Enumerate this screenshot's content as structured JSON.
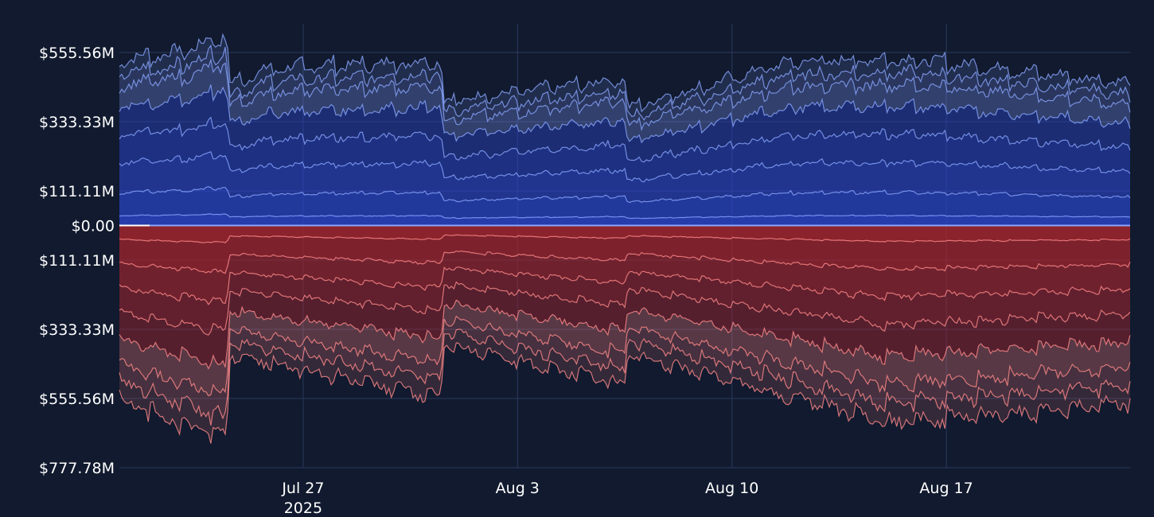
{
  "chart_data": {
    "type": "area",
    "title": "",
    "xlabel": "",
    "ylabel": "",
    "x_range": [
      "2025-07-21",
      "2025-08-23"
    ],
    "x_ticks": [
      {
        "date": "2025-07-27",
        "label": "Jul 27",
        "sublabel": "2025"
      },
      {
        "date": "2025-08-03",
        "label": "Aug 3",
        "sublabel": ""
      },
      {
        "date": "2025-08-10",
        "label": "Aug 10",
        "sublabel": ""
      },
      {
        "date": "2025-08-17",
        "label": "Aug 17",
        "sublabel": ""
      }
    ],
    "y_ticks": [
      {
        "value": 555.56,
        "label": "$555.56M"
      },
      {
        "value": 333.33,
        "label": "$333.33M"
      },
      {
        "value": 111.11,
        "label": "$111.11M"
      },
      {
        "value": 0,
        "label": "$0.00"
      },
      {
        "value": -111.11,
        "label": "$111.11M"
      },
      {
        "value": -333.33,
        "label": "$333.33M"
      },
      {
        "value": -555.56,
        "label": "$555.56M"
      },
      {
        "value": -777.78,
        "label": "$777.78M"
      }
    ],
    "ylim": [
      -777.78,
      555.56
    ],
    "grid": true,
    "legend": "none",
    "colors": {
      "background": "#111a2e",
      "grid": "#2a3a5e",
      "positive_fill": "#2a45c8",
      "positive_fill_light": "#6f86dd",
      "positive_line": "#8aa6ff",
      "negative_fill": "#a8262e",
      "negative_fill_light": "#d97070",
      "negative_line": "#ff8a8a",
      "zero_line": "#ffffff"
    },
    "upper_envelope_approx": [
      {
        "date": "2025-07-21",
        "value": 560
      },
      {
        "date": "2025-07-23",
        "value": 585
      },
      {
        "date": "2025-07-24.5",
        "value": 640
      },
      {
        "date": "2025-07-24.6",
        "value": 480
      },
      {
        "date": "2025-07-26",
        "value": 530
      },
      {
        "date": "2025-07-31.5",
        "value": 555
      },
      {
        "date": "2025-07-31.6",
        "value": 420
      },
      {
        "date": "2025-08-06.5",
        "value": 495
      },
      {
        "date": "2025-08-06.6",
        "value": 395
      },
      {
        "date": "2025-08-12",
        "value": 555
      },
      {
        "date": "2025-08-16",
        "value": 560
      },
      {
        "date": "2025-08-23",
        "value": 480
      }
    ],
    "lower_envelope_approx": [
      {
        "date": "2025-07-21",
        "value": -590
      },
      {
        "date": "2025-07-24.5",
        "value": -720
      },
      {
        "date": "2025-07-24.6",
        "value": -440
      },
      {
        "date": "2025-07-31.5",
        "value": -580
      },
      {
        "date": "2025-07-31.6",
        "value": -400
      },
      {
        "date": "2025-08-06.5",
        "value": -540
      },
      {
        "date": "2025-08-06.6",
        "value": -430
      },
      {
        "date": "2025-08-15",
        "value": -670
      },
      {
        "date": "2025-08-23",
        "value": -600
      }
    ]
  }
}
